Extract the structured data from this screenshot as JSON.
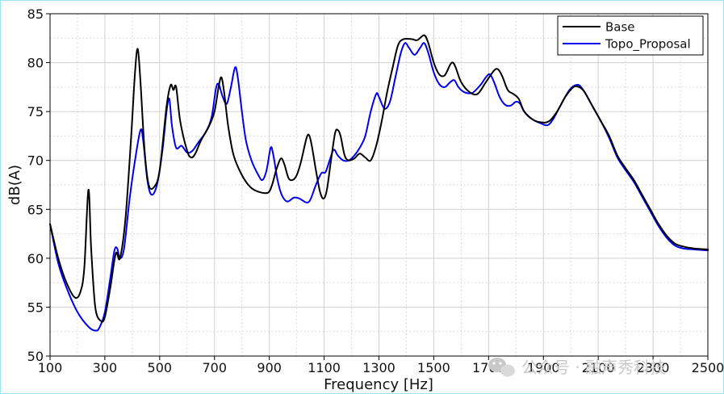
{
  "chart_data": {
    "type": "line",
    "xlabel": "Frequency [Hz]",
    "ylabel": "dB(A)",
    "xlim": [
      100,
      2500
    ],
    "ylim": [
      50,
      85
    ],
    "xticks": [
      100,
      300,
      500,
      700,
      900,
      1100,
      1300,
      1500,
      1700,
      1900,
      2100,
      2300,
      2500
    ],
    "yticks": [
      50,
      55,
      60,
      65,
      70,
      75,
      80,
      85
    ],
    "grid": true,
    "legend_position": "top-right",
    "series": [
      {
        "name": "Base",
        "color": "#000000",
        "points": [
          [
            100,
            63.5
          ],
          [
            130,
            60
          ],
          [
            160,
            57.5
          ],
          [
            190,
            56
          ],
          [
            210,
            56.5
          ],
          [
            225,
            59
          ],
          [
            240,
            67
          ],
          [
            250,
            61
          ],
          [
            265,
            55
          ],
          [
            285,
            53.6
          ],
          [
            300,
            54
          ],
          [
            320,
            57
          ],
          [
            340,
            60.5
          ],
          [
            355,
            60
          ],
          [
            375,
            64
          ],
          [
            395,
            72
          ],
          [
            410,
            79
          ],
          [
            420,
            81.4
          ],
          [
            430,
            78
          ],
          [
            445,
            71
          ],
          [
            460,
            67.5
          ],
          [
            480,
            67.3
          ],
          [
            500,
            69
          ],
          [
            525,
            75.5
          ],
          [
            540,
            77.7
          ],
          [
            550,
            77.2
          ],
          [
            560,
            77.5
          ],
          [
            575,
            74
          ],
          [
            600,
            71
          ],
          [
            615,
            70.3
          ],
          [
            630,
            70.7
          ],
          [
            650,
            72
          ],
          [
            680,
            73.5
          ],
          [
            700,
            75
          ],
          [
            715,
            77.5
          ],
          [
            725,
            78.5
          ],
          [
            735,
            77
          ],
          [
            750,
            73.5
          ],
          [
            770,
            70.5
          ],
          [
            800,
            68.5
          ],
          [
            830,
            67.3
          ],
          [
            860,
            66.8
          ],
          [
            895,
            66.7
          ],
          [
            910,
            67.5
          ],
          [
            925,
            69
          ],
          [
            942,
            70.2
          ],
          [
            955,
            69.6
          ],
          [
            970,
            68.2
          ],
          [
            985,
            68
          ],
          [
            1000,
            68.5
          ],
          [
            1015,
            69.8
          ],
          [
            1035,
            72.2
          ],
          [
            1045,
            72.6
          ],
          [
            1055,
            71.5
          ],
          [
            1070,
            69
          ],
          [
            1085,
            66.8
          ],
          [
            1098,
            66.1
          ],
          [
            1110,
            67
          ],
          [
            1125,
            70
          ],
          [
            1140,
            72.8
          ],
          [
            1150,
            73.1
          ],
          [
            1160,
            72.5
          ],
          [
            1175,
            70.5
          ],
          [
            1190,
            70
          ],
          [
            1210,
            70.2
          ],
          [
            1230,
            70.7
          ],
          [
            1250,
            70.3
          ],
          [
            1270,
            70
          ],
          [
            1290,
            71.5
          ],
          [
            1310,
            74
          ],
          [
            1330,
            77
          ],
          [
            1350,
            79.5
          ],
          [
            1370,
            81.8
          ],
          [
            1390,
            82.4
          ],
          [
            1420,
            82.4
          ],
          [
            1440,
            82.3
          ],
          [
            1465,
            82.8
          ],
          [
            1480,
            82
          ],
          [
            1500,
            80
          ],
          [
            1520,
            78.8
          ],
          [
            1540,
            78.7
          ],
          [
            1560,
            79.8
          ],
          [
            1570,
            80
          ],
          [
            1580,
            79.5
          ],
          [
            1600,
            78
          ],
          [
            1630,
            77
          ],
          [
            1660,
            76.8
          ],
          [
            1690,
            78
          ],
          [
            1720,
            79.2
          ],
          [
            1735,
            79.3
          ],
          [
            1750,
            78.6
          ],
          [
            1770,
            77.2
          ],
          [
            1790,
            76.8
          ],
          [
            1810,
            76.3
          ],
          [
            1830,
            75
          ],
          [
            1860,
            74.2
          ],
          [
            1890,
            73.9
          ],
          [
            1920,
            74
          ],
          [
            1950,
            75
          ],
          [
            1980,
            76.5
          ],
          [
            2010,
            77.5
          ],
          [
            2030,
            77.5
          ],
          [
            2050,
            77
          ],
          [
            2080,
            75.5
          ],
          [
            2110,
            74
          ],
          [
            2140,
            72.5
          ],
          [
            2170,
            70.5
          ],
          [
            2200,
            69.2
          ],
          [
            2230,
            68
          ],
          [
            2260,
            66.5
          ],
          [
            2290,
            65
          ],
          [
            2320,
            63.5
          ],
          [
            2350,
            62.3
          ],
          [
            2380,
            61.5
          ],
          [
            2410,
            61.2
          ],
          [
            2450,
            61
          ],
          [
            2500,
            60.9
          ]
        ]
      },
      {
        "name": "Topo_Proposal",
        "color": "#0000ee",
        "points": [
          [
            100,
            63.5
          ],
          [
            130,
            59.5
          ],
          [
            160,
            57
          ],
          [
            200,
            54.5
          ],
          [
            240,
            53
          ],
          [
            265,
            52.6
          ],
          [
            280,
            52.9
          ],
          [
            300,
            54.5
          ],
          [
            320,
            58
          ],
          [
            335,
            60.8
          ],
          [
            345,
            61
          ],
          [
            355,
            60
          ],
          [
            370,
            61
          ],
          [
            390,
            66
          ],
          [
            410,
            70
          ],
          [
            430,
            73.1
          ],
          [
            440,
            72
          ],
          [
            455,
            68
          ],
          [
            470,
            66.5
          ],
          [
            490,
            67.5
          ],
          [
            510,
            71
          ],
          [
            525,
            75
          ],
          [
            535,
            76.3
          ],
          [
            545,
            73.5
          ],
          [
            560,
            71.3
          ],
          [
            580,
            71.5
          ],
          [
            600,
            70.8
          ],
          [
            620,
            71
          ],
          [
            640,
            71.8
          ],
          [
            670,
            73
          ],
          [
            690,
            74.5
          ],
          [
            705,
            77.3
          ],
          [
            715,
            77.8
          ],
          [
            730,
            76.5
          ],
          [
            745,
            75.8
          ],
          [
            760,
            77.5
          ],
          [
            775,
            79.5
          ],
          [
            785,
            78.5
          ],
          [
            800,
            75
          ],
          [
            815,
            72
          ],
          [
            835,
            70
          ],
          [
            860,
            68.5
          ],
          [
            875,
            68
          ],
          [
            890,
            69
          ],
          [
            905,
            71.3
          ],
          [
            915,
            70.5
          ],
          [
            930,
            68
          ],
          [
            945,
            66.5
          ],
          [
            965,
            65.8
          ],
          [
            990,
            66.2
          ],
          [
            1010,
            66.1
          ],
          [
            1035,
            65.7
          ],
          [
            1050,
            66
          ],
          [
            1070,
            67.5
          ],
          [
            1090,
            68.7
          ],
          [
            1105,
            68.8
          ],
          [
            1120,
            70
          ],
          [
            1135,
            71.1
          ],
          [
            1150,
            70.5
          ],
          [
            1170,
            70
          ],
          [
            1190,
            70
          ],
          [
            1210,
            70.5
          ],
          [
            1230,
            71.3
          ],
          [
            1250,
            72.5
          ],
          [
            1270,
            75
          ],
          [
            1290,
            76.8
          ],
          [
            1300,
            76.5
          ],
          [
            1320,
            75.3
          ],
          [
            1340,
            76
          ],
          [
            1360,
            78.5
          ],
          [
            1380,
            81
          ],
          [
            1395,
            82
          ],
          [
            1410,
            81.5
          ],
          [
            1430,
            80.8
          ],
          [
            1450,
            81.5
          ],
          [
            1465,
            82
          ],
          [
            1480,
            81
          ],
          [
            1500,
            79
          ],
          [
            1520,
            77.8
          ],
          [
            1540,
            77.5
          ],
          [
            1560,
            78
          ],
          [
            1575,
            78.2
          ],
          [
            1590,
            77.5
          ],
          [
            1610,
            77
          ],
          [
            1640,
            76.9
          ],
          [
            1670,
            77.7
          ],
          [
            1690,
            78.5
          ],
          [
            1705,
            78.8
          ],
          [
            1720,
            78
          ],
          [
            1740,
            76.5
          ],
          [
            1760,
            75.7
          ],
          [
            1780,
            75.6
          ],
          [
            1800,
            76
          ],
          [
            1815,
            75.8
          ],
          [
            1830,
            75
          ],
          [
            1860,
            74.2
          ],
          [
            1890,
            73.8
          ],
          [
            1915,
            73.6
          ],
          [
            1935,
            74.2
          ],
          [
            1960,
            75.5
          ],
          [
            1990,
            77
          ],
          [
            2010,
            77.6
          ],
          [
            2030,
            77.7
          ],
          [
            2050,
            77
          ],
          [
            2080,
            75.5
          ],
          [
            2110,
            74
          ],
          [
            2140,
            72.3
          ],
          [
            2170,
            70.3
          ],
          [
            2200,
            69
          ],
          [
            2230,
            67.8
          ],
          [
            2260,
            66.3
          ],
          [
            2290,
            64.8
          ],
          [
            2320,
            63.3
          ],
          [
            2350,
            62.1
          ],
          [
            2380,
            61.3
          ],
          [
            2410,
            61
          ],
          [
            2450,
            60.9
          ],
          [
            2500,
            60.8
          ]
        ]
      }
    ]
  },
  "watermark": {
    "text": "公众号 · 融声秀科技",
    "icon": "wechat-icon"
  }
}
